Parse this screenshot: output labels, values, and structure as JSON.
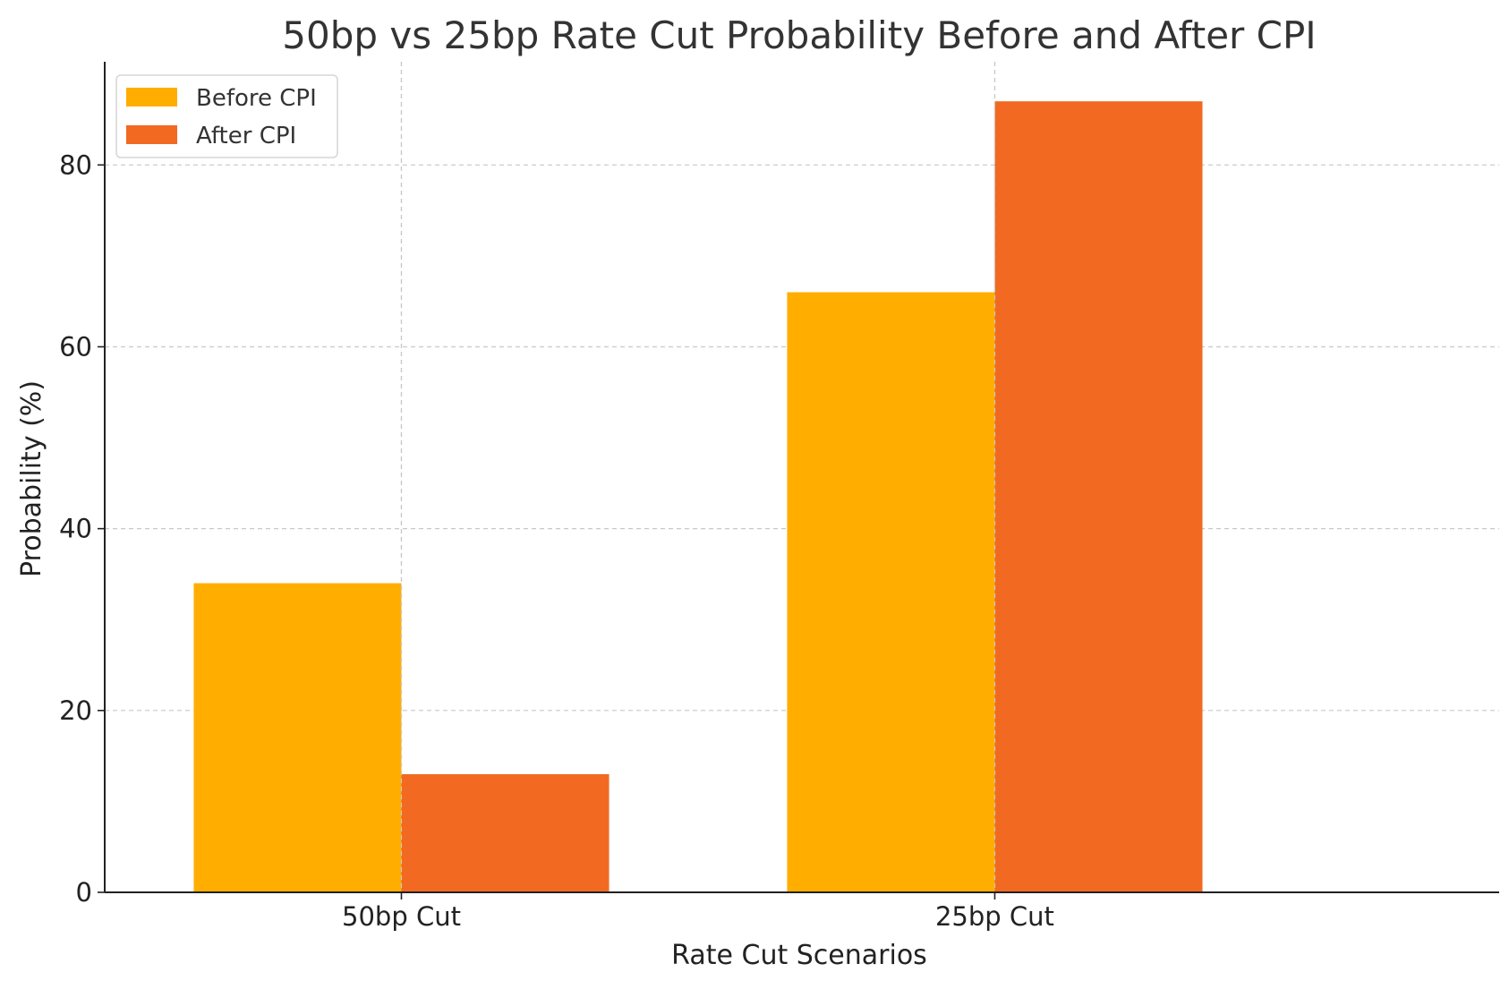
{
  "chart_data": {
    "type": "bar",
    "title": "50bp vs 25bp Rate Cut Probability Before and After CPI",
    "xlabel": "Rate Cut Scenarios",
    "ylabel": "Probability (%)",
    "categories": [
      "50bp Cut",
      "25bp Cut"
    ],
    "series": [
      {
        "name": "Before CPI",
        "values": [
          34,
          66
        ],
        "color": "#FFAE00"
      },
      {
        "name": "After CPI",
        "values": [
          13,
          87
        ],
        "color": "#F26922"
      }
    ],
    "ylim": [
      0,
      91.35
    ],
    "yticks": [
      0,
      20,
      40,
      60,
      80
    ],
    "grid": true,
    "legend_position": "top-left"
  }
}
